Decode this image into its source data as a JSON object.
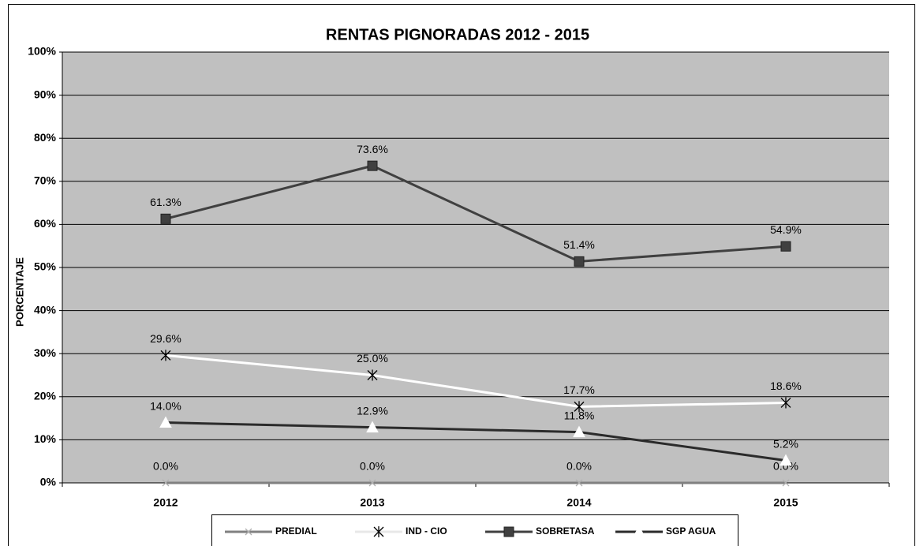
{
  "chart_data": {
    "type": "line",
    "title": "RENTAS PIGNORADAS 2012 - 2015",
    "y_label": "PORCENTAJE",
    "categories": [
      "2012",
      "2013",
      "2014",
      "2015"
    ],
    "ylim": [
      0,
      100
    ],
    "yticks": [
      {
        "value": 0,
        "label": "0%"
      },
      {
        "value": 10,
        "label": "10%"
      },
      {
        "value": 20,
        "label": "20%"
      },
      {
        "value": 30,
        "label": "30%"
      },
      {
        "value": 40,
        "label": "40%"
      },
      {
        "value": 50,
        "label": "50%"
      },
      {
        "value": 60,
        "label": "60%"
      },
      {
        "value": 70,
        "label": "70%"
      },
      {
        "value": 80,
        "label": "80%"
      },
      {
        "value": 90,
        "label": "90%"
      },
      {
        "value": 100,
        "label": "100%"
      }
    ],
    "grid": true,
    "series": [
      {
        "name": "PREDIAL",
        "color": "#808080",
        "marker": "x",
        "values": [
          0,
          0,
          0,
          0
        ],
        "value_labels": [
          "0.0%",
          "0.0%",
          "0.0%",
          "0.0%"
        ]
      },
      {
        "name": "IND - CIO",
        "color": "#ffffff",
        "marker": "star",
        "values": [
          29.6,
          25.0,
          17.7,
          18.6
        ],
        "value_labels": [
          "29.6%",
          "25.0%",
          "17.7%",
          "18.6%"
        ]
      },
      {
        "name": "SOBRETASA",
        "color": "#404040",
        "marker": "square",
        "values": [
          61.3,
          73.6,
          51.4,
          54.9
        ],
        "value_labels": [
          "61.3%",
          "73.6%",
          "51.4%",
          "54.9%"
        ]
      },
      {
        "name": "SGP AGUA",
        "color": "#2b2b2b",
        "marker": "triangle",
        "values": [
          14.0,
          12.9,
          11.8,
          5.2
        ],
        "value_labels": [
          "14.0%",
          "12.9%",
          "11.8%",
          "5.2%"
        ]
      }
    ]
  }
}
